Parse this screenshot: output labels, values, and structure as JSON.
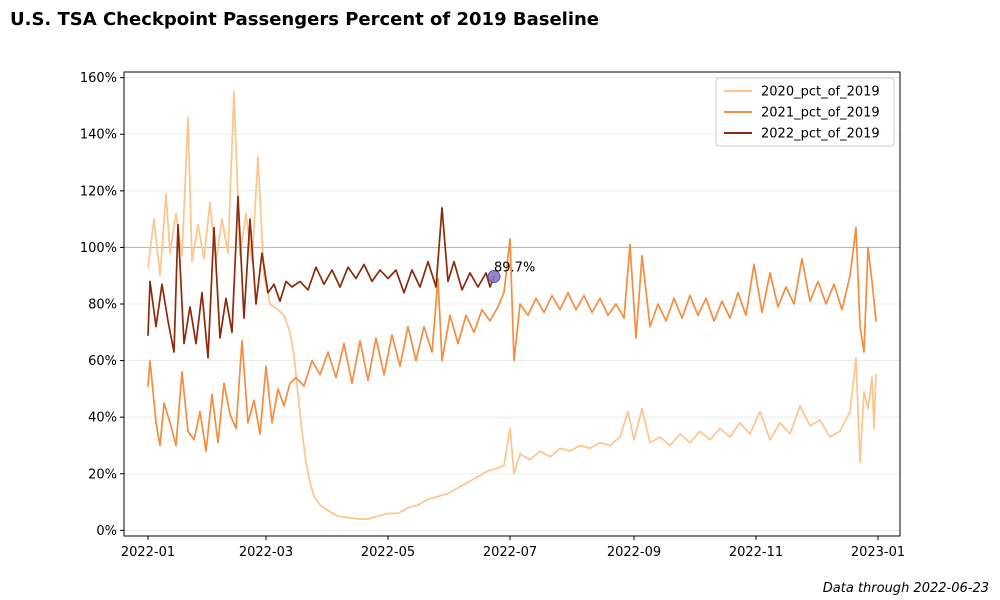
{
  "title": "U.S. TSA Checkpoint Passengers Percent of 2019 Baseline",
  "footnote": "Data through 2022-06-23",
  "chart_data": {
    "type": "line",
    "title": "U.S. TSA Checkpoint Passengers Percent of 2019 Baseline",
    "xlabel": "",
    "ylabel": "",
    "x_axis": {
      "type": "date",
      "range": [
        "2021-12-20",
        "2023-01-12"
      ],
      "ticks": [
        "2022-01",
        "2022-03",
        "2022-05",
        "2022-07",
        "2022-09",
        "2022-11",
        "2023-01"
      ]
    },
    "y_axis": {
      "range": [
        -2,
        162
      ],
      "format": "percent",
      "ticks": [
        0,
        20,
        40,
        60,
        80,
        100,
        120,
        140,
        160
      ],
      "tick_labels": [
        "0%",
        "20%",
        "40%",
        "60%",
        "80%",
        "100%",
        "120%",
        "140%",
        "160%"
      ]
    },
    "grid": "horizontal",
    "reference_line": {
      "y": 100,
      "color": "#b0b0b0"
    },
    "legend": {
      "placement": "top-right"
    },
    "series": [
      {
        "name": "2020_pct_of_2019",
        "color": "#fdc48b",
        "points": [
          [
            "2022-01-01",
            93
          ],
          [
            "2022-01-04",
            110
          ],
          [
            "2022-01-07",
            90
          ],
          [
            "2022-01-10",
            119
          ],
          [
            "2022-01-12",
            98
          ],
          [
            "2022-01-15",
            112
          ],
          [
            "2022-01-18",
            97
          ],
          [
            "2022-01-21",
            146
          ],
          [
            "2022-01-23",
            95
          ],
          [
            "2022-01-26",
            108
          ],
          [
            "2022-01-29",
            96
          ],
          [
            "2022-02-01",
            116
          ],
          [
            "2022-02-04",
            95
          ],
          [
            "2022-02-07",
            110
          ],
          [
            "2022-02-10",
            98
          ],
          [
            "2022-02-13",
            155
          ],
          [
            "2022-02-16",
            97
          ],
          [
            "2022-02-19",
            112
          ],
          [
            "2022-02-22",
            95
          ],
          [
            "2022-02-25",
            132
          ],
          [
            "2022-02-28",
            90
          ],
          [
            "2022-03-03",
            80
          ],
          [
            "2022-03-07",
            78
          ],
          [
            "2022-03-10",
            76
          ],
          [
            "2022-03-13",
            70
          ],
          [
            "2022-03-15",
            62
          ],
          [
            "2022-03-17",
            48
          ],
          [
            "2022-03-19",
            35
          ],
          [
            "2022-03-21",
            24
          ],
          [
            "2022-03-23",
            17
          ],
          [
            "2022-03-25",
            12
          ],
          [
            "2022-03-28",
            9
          ],
          [
            "2022-04-01",
            7
          ],
          [
            "2022-04-06",
            5
          ],
          [
            "2022-04-11",
            4.5
          ],
          [
            "2022-04-16",
            4
          ],
          [
            "2022-04-21",
            4
          ],
          [
            "2022-04-26",
            5
          ],
          [
            "2022-05-01",
            6
          ],
          [
            "2022-05-06",
            6
          ],
          [
            "2022-05-11",
            8
          ],
          [
            "2022-05-16",
            9
          ],
          [
            "2022-05-21",
            11
          ],
          [
            "2022-05-26",
            12
          ],
          [
            "2022-05-31",
            13
          ],
          [
            "2022-06-05",
            15
          ],
          [
            "2022-06-10",
            17
          ],
          [
            "2022-06-15",
            19
          ],
          [
            "2022-06-20",
            21
          ],
          [
            "2022-06-25",
            22
          ],
          [
            "2022-06-28",
            23
          ],
          [
            "2022-07-01",
            36
          ],
          [
            "2022-07-03",
            20
          ],
          [
            "2022-07-06",
            27
          ],
          [
            "2022-07-11",
            25
          ],
          [
            "2022-07-16",
            28
          ],
          [
            "2022-07-21",
            26
          ],
          [
            "2022-07-26",
            29
          ],
          [
            "2022-07-31",
            28
          ],
          [
            "2022-08-05",
            30
          ],
          [
            "2022-08-10",
            29
          ],
          [
            "2022-08-15",
            31
          ],
          [
            "2022-08-20",
            30
          ],
          [
            "2022-08-25",
            33
          ],
          [
            "2022-08-29",
            42
          ],
          [
            "2022-09-01",
            32
          ],
          [
            "2022-09-05",
            43
          ],
          [
            "2022-09-09",
            31
          ],
          [
            "2022-09-14",
            33
          ],
          [
            "2022-09-19",
            30
          ],
          [
            "2022-09-24",
            34
          ],
          [
            "2022-09-29",
            31
          ],
          [
            "2022-10-04",
            35
          ],
          [
            "2022-10-09",
            32
          ],
          [
            "2022-10-14",
            36
          ],
          [
            "2022-10-19",
            33
          ],
          [
            "2022-10-24",
            38
          ],
          [
            "2022-10-29",
            34
          ],
          [
            "2022-11-03",
            42
          ],
          [
            "2022-11-08",
            32
          ],
          [
            "2022-11-13",
            38
          ],
          [
            "2022-11-18",
            34
          ],
          [
            "2022-11-23",
            44
          ],
          [
            "2022-11-28",
            37
          ],
          [
            "2022-12-03",
            39
          ],
          [
            "2022-12-08",
            33
          ],
          [
            "2022-12-13",
            35
          ],
          [
            "2022-12-18",
            42
          ],
          [
            "2022-12-21",
            61
          ],
          [
            "2022-12-23",
            24
          ],
          [
            "2022-12-25",
            49
          ],
          [
            "2022-12-27",
            43
          ],
          [
            "2022-12-29",
            54
          ],
          [
            "2022-12-30",
            36
          ],
          [
            "2022-12-31",
            55
          ]
        ]
      },
      {
        "name": "2021_pct_of_2019",
        "color": "#f48d3f",
        "points": [
          [
            "2022-01-01",
            51
          ],
          [
            "2022-01-02",
            60
          ],
          [
            "2022-01-05",
            38
          ],
          [
            "2022-01-07",
            30
          ],
          [
            "2022-01-09",
            45
          ],
          [
            "2022-01-12",
            38
          ],
          [
            "2022-01-15",
            30
          ],
          [
            "2022-01-18",
            56
          ],
          [
            "2022-01-21",
            35
          ],
          [
            "2022-01-24",
            32
          ],
          [
            "2022-01-27",
            42
          ],
          [
            "2022-01-30",
            28
          ],
          [
            "2022-02-02",
            48
          ],
          [
            "2022-02-05",
            31
          ],
          [
            "2022-02-08",
            52
          ],
          [
            "2022-02-11",
            41
          ],
          [
            "2022-02-14",
            36
          ],
          [
            "2022-02-17",
            67
          ],
          [
            "2022-02-20",
            38
          ],
          [
            "2022-02-23",
            46
          ],
          [
            "2022-02-26",
            34
          ],
          [
            "2022-03-01",
            58
          ],
          [
            "2022-03-04",
            38
          ],
          [
            "2022-03-07",
            50
          ],
          [
            "2022-03-10",
            44
          ],
          [
            "2022-03-13",
            52
          ],
          [
            "2022-03-16",
            54
          ],
          [
            "2022-03-20",
            51
          ],
          [
            "2022-03-24",
            60
          ],
          [
            "2022-03-28",
            55
          ],
          [
            "2022-04-01",
            63
          ],
          [
            "2022-04-05",
            54
          ],
          [
            "2022-04-09",
            66
          ],
          [
            "2022-04-13",
            52
          ],
          [
            "2022-04-17",
            67
          ],
          [
            "2022-04-21",
            53
          ],
          [
            "2022-04-25",
            68
          ],
          [
            "2022-04-29",
            55
          ],
          [
            "2022-05-03",
            69
          ],
          [
            "2022-05-07",
            58
          ],
          [
            "2022-05-11",
            72
          ],
          [
            "2022-05-15",
            60
          ],
          [
            "2022-05-19",
            72
          ],
          [
            "2022-05-23",
            63
          ],
          [
            "2022-05-26",
            89
          ],
          [
            "2022-05-28",
            60
          ],
          [
            "2022-06-01",
            76
          ],
          [
            "2022-06-05",
            66
          ],
          [
            "2022-06-09",
            76
          ],
          [
            "2022-06-13",
            70
          ],
          [
            "2022-06-17",
            78
          ],
          [
            "2022-06-21",
            74
          ],
          [
            "2022-06-25",
            79
          ],
          [
            "2022-06-28",
            84
          ],
          [
            "2022-07-01",
            103
          ],
          [
            "2022-07-03",
            60
          ],
          [
            "2022-07-06",
            80
          ],
          [
            "2022-07-10",
            76
          ],
          [
            "2022-07-14",
            82
          ],
          [
            "2022-07-18",
            77
          ],
          [
            "2022-07-22",
            83
          ],
          [
            "2022-07-26",
            78
          ],
          [
            "2022-07-30",
            84
          ],
          [
            "2022-08-03",
            78
          ],
          [
            "2022-08-07",
            83
          ],
          [
            "2022-08-11",
            77
          ],
          [
            "2022-08-15",
            82
          ],
          [
            "2022-08-19",
            76
          ],
          [
            "2022-08-23",
            80
          ],
          [
            "2022-08-27",
            75
          ],
          [
            "2022-08-30",
            101
          ],
          [
            "2022-09-02",
            68
          ],
          [
            "2022-09-05",
            97
          ],
          [
            "2022-09-09",
            72
          ],
          [
            "2022-09-13",
            80
          ],
          [
            "2022-09-17",
            74
          ],
          [
            "2022-09-21",
            82
          ],
          [
            "2022-09-25",
            75
          ],
          [
            "2022-09-29",
            83
          ],
          [
            "2022-10-03",
            76
          ],
          [
            "2022-10-07",
            82
          ],
          [
            "2022-10-11",
            74
          ],
          [
            "2022-10-15",
            81
          ],
          [
            "2022-10-19",
            75
          ],
          [
            "2022-10-23",
            84
          ],
          [
            "2022-10-27",
            76
          ],
          [
            "2022-10-31",
            94
          ],
          [
            "2022-11-04",
            77
          ],
          [
            "2022-11-08",
            91
          ],
          [
            "2022-11-12",
            79
          ],
          [
            "2022-11-16",
            86
          ],
          [
            "2022-11-20",
            80
          ],
          [
            "2022-11-24",
            96
          ],
          [
            "2022-11-28",
            81
          ],
          [
            "2022-12-02",
            88
          ],
          [
            "2022-12-06",
            80
          ],
          [
            "2022-12-10",
            87
          ],
          [
            "2022-12-14",
            78
          ],
          [
            "2022-12-18",
            90
          ],
          [
            "2022-12-21",
            107
          ],
          [
            "2022-12-23",
            72
          ],
          [
            "2022-12-25",
            63
          ],
          [
            "2022-12-27",
            100
          ],
          [
            "2022-12-29",
            88
          ],
          [
            "2022-12-31",
            74
          ]
        ]
      },
      {
        "name": "2022_pct_of_2019",
        "color": "#8b2b0c",
        "points": [
          [
            "2022-01-01",
            69
          ],
          [
            "2022-01-02",
            88
          ],
          [
            "2022-01-05",
            72
          ],
          [
            "2022-01-08",
            87
          ],
          [
            "2022-01-11",
            74
          ],
          [
            "2022-01-14",
            63
          ],
          [
            "2022-01-16",
            108
          ],
          [
            "2022-01-19",
            66
          ],
          [
            "2022-01-22",
            79
          ],
          [
            "2022-01-25",
            66
          ],
          [
            "2022-01-28",
            84
          ],
          [
            "2022-01-31",
            61
          ],
          [
            "2022-02-03",
            107
          ],
          [
            "2022-02-06",
            68
          ],
          [
            "2022-02-09",
            82
          ],
          [
            "2022-02-12",
            70
          ],
          [
            "2022-02-15",
            118
          ],
          [
            "2022-02-18",
            75
          ],
          [
            "2022-02-21",
            110
          ],
          [
            "2022-02-24",
            80
          ],
          [
            "2022-02-27",
            98
          ],
          [
            "2022-03-02",
            84
          ],
          [
            "2022-03-05",
            87
          ],
          [
            "2022-03-08",
            81
          ],
          [
            "2022-03-11",
            88
          ],
          [
            "2022-03-14",
            86
          ],
          [
            "2022-03-18",
            88
          ],
          [
            "2022-03-22",
            85
          ],
          [
            "2022-03-26",
            93
          ],
          [
            "2022-03-30",
            87
          ],
          [
            "2022-04-03",
            92
          ],
          [
            "2022-04-07",
            86
          ],
          [
            "2022-04-11",
            93
          ],
          [
            "2022-04-15",
            89
          ],
          [
            "2022-04-19",
            94
          ],
          [
            "2022-04-23",
            88
          ],
          [
            "2022-04-27",
            92
          ],
          [
            "2022-05-01",
            89
          ],
          [
            "2022-05-05",
            92
          ],
          [
            "2022-05-09",
            84
          ],
          [
            "2022-05-13",
            92
          ],
          [
            "2022-05-17",
            86
          ],
          [
            "2022-05-21",
            95
          ],
          [
            "2022-05-25",
            86
          ],
          [
            "2022-05-28",
            114
          ],
          [
            "2022-05-31",
            88
          ],
          [
            "2022-06-03",
            95
          ],
          [
            "2022-06-07",
            85
          ],
          [
            "2022-06-11",
            91
          ],
          [
            "2022-06-15",
            86
          ],
          [
            "2022-06-19",
            91
          ],
          [
            "2022-06-21",
            86
          ],
          [
            "2022-06-23",
            89.7
          ]
        ]
      }
    ],
    "annotation": {
      "x": "2022-06-23",
      "y": 89.7,
      "label": "89.7%",
      "marker_color": "#7f6ec7"
    }
  }
}
